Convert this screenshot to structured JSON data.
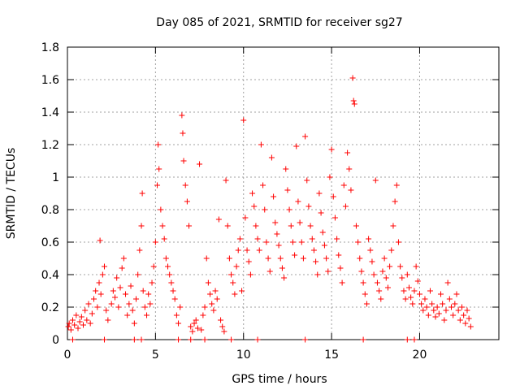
{
  "chart_data": {
    "type": "scatter",
    "title": "Day 085 of 2021, SRMTID for receiver sg27",
    "xlabel": "GPS time / hours",
    "ylabel": "SRMTID / TECUs",
    "xlim": [
      0,
      24.5
    ],
    "ylim": [
      0,
      1.8
    ],
    "xticks": [
      0,
      5,
      10,
      15,
      20
    ],
    "yticks": [
      0,
      0.2,
      0.4,
      0.6,
      0.8,
      1.0,
      1.2,
      1.4,
      1.6,
      1.8
    ],
    "xtick_labels": [
      "0",
      "5",
      "10",
      "15",
      "20"
    ],
    "ytick_labels": [
      "0",
      "0.2",
      "0.4",
      "0.6",
      "0.8",
      "1",
      "1.2",
      "1.4",
      "1.6",
      "1.8"
    ],
    "grid": true,
    "marker": "+",
    "color": "#ff0000",
    "series": [
      {
        "name": "SRMTID",
        "points": [
          [
            0.05,
            0.08
          ],
          [
            0.1,
            0.1
          ],
          [
            0.2,
            0.06
          ],
          [
            0.3,
            0.12
          ],
          [
            0.4,
            0.09
          ],
          [
            0.5,
            0.15
          ],
          [
            0.6,
            0.07
          ],
          [
            0.7,
            0.11
          ],
          [
            0.8,
            0.14
          ],
          [
            0.9,
            0.09
          ],
          [
            1.0,
            0.18
          ],
          [
            1.1,
            0.12
          ],
          [
            1.2,
            0.22
          ],
          [
            1.3,
            0.1
          ],
          [
            1.4,
            0.16
          ],
          [
            1.5,
            0.25
          ],
          [
            1.6,
            0.3
          ],
          [
            1.7,
            0.2
          ],
          [
            1.8,
            0.35
          ],
          [
            1.9,
            0.28
          ],
          [
            1.85,
            0.61
          ],
          [
            2.0,
            0.4
          ],
          [
            2.1,
            0.45
          ],
          [
            2.2,
            0.18
          ],
          [
            2.3,
            0.12
          ],
          [
            2.5,
            0.22
          ],
          [
            2.6,
            0.3
          ],
          [
            2.7,
            0.26
          ],
          [
            2.8,
            0.38
          ],
          [
            2.9,
            0.2
          ],
          [
            3.0,
            0.32
          ],
          [
            3.1,
            0.44
          ],
          [
            3.2,
            0.5
          ],
          [
            3.3,
            0.28
          ],
          [
            3.4,
            0.15
          ],
          [
            3.5,
            0.22
          ],
          [
            3.6,
            0.33
          ],
          [
            3.7,
            0.18
          ],
          [
            3.8,
            0.1
          ],
          [
            3.9,
            0.25
          ],
          [
            4.0,
            0.4
          ],
          [
            4.1,
            0.55
          ],
          [
            4.2,
            0.7
          ],
          [
            4.25,
            0.9
          ],
          [
            4.3,
            0.3
          ],
          [
            4.4,
            0.2
          ],
          [
            4.5,
            0.15
          ],
          [
            4.6,
            0.28
          ],
          [
            4.7,
            0.22
          ],
          [
            4.8,
            0.35
          ],
          [
            4.9,
            0.45
          ],
          [
            5.0,
            0.6
          ],
          [
            5.1,
            0.95
          ],
          [
            5.15,
            1.2
          ],
          [
            5.2,
            1.05
          ],
          [
            5.3,
            0.8
          ],
          [
            5.4,
            0.7
          ],
          [
            5.5,
            0.62
          ],
          [
            5.6,
            0.5
          ],
          [
            5.7,
            0.45
          ],
          [
            5.8,
            0.4
          ],
          [
            5.9,
            0.35
          ],
          [
            6.0,
            0.3
          ],
          [
            6.1,
            0.25
          ],
          [
            6.2,
            0.15
          ],
          [
            6.3,
            0.1
          ],
          [
            6.4,
            0.2
          ],
          [
            6.5,
            1.38
          ],
          [
            6.55,
            1.27
          ],
          [
            6.6,
            1.1
          ],
          [
            6.7,
            0.95
          ],
          [
            6.8,
            0.85
          ],
          [
            6.9,
            0.7
          ],
          [
            7.0,
            0.08
          ],
          [
            7.1,
            0.05
          ],
          [
            7.2,
            0.1
          ],
          [
            7.3,
            0.12
          ],
          [
            7.4,
            0.07
          ],
          [
            7.5,
            1.08
          ],
          [
            7.6,
            0.06
          ],
          [
            7.7,
            0.15
          ],
          [
            7.8,
            0.2
          ],
          [
            7.9,
            0.5
          ],
          [
            8.0,
            0.35
          ],
          [
            8.1,
            0.28
          ],
          [
            8.2,
            0.22
          ],
          [
            8.3,
            0.18
          ],
          [
            8.4,
            0.3
          ],
          [
            8.5,
            0.25
          ],
          [
            8.6,
            0.74
          ],
          [
            8.7,
            0.12
          ],
          [
            8.8,
            0.08
          ],
          [
            8.9,
            0.05
          ],
          [
            9.0,
            0.98
          ],
          [
            9.1,
            0.7
          ],
          [
            9.2,
            0.5
          ],
          [
            9.3,
            0.4
          ],
          [
            9.4,
            0.35
          ],
          [
            9.5,
            0.28
          ],
          [
            9.6,
            0.45
          ],
          [
            9.7,
            0.55
          ],
          [
            9.8,
            0.62
          ],
          [
            9.9,
            0.3
          ],
          [
            10.0,
            1.35
          ],
          [
            10.1,
            0.75
          ],
          [
            10.2,
            0.55
          ],
          [
            10.3,
            0.48
          ],
          [
            10.4,
            0.4
          ],
          [
            10.5,
            0.9
          ],
          [
            10.6,
            0.82
          ],
          [
            10.7,
            0.7
          ],
          [
            10.8,
            0.62
          ],
          [
            10.9,
            0.55
          ],
          [
            11.0,
            1.2
          ],
          [
            11.1,
            0.95
          ],
          [
            11.2,
            0.8
          ],
          [
            11.3,
            0.6
          ],
          [
            11.4,
            0.5
          ],
          [
            11.5,
            0.42
          ],
          [
            11.6,
            1.12
          ],
          [
            11.7,
            0.88
          ],
          [
            11.8,
            0.72
          ],
          [
            11.9,
            0.65
          ],
          [
            12.0,
            0.58
          ],
          [
            12.1,
            0.5
          ],
          [
            12.2,
            0.44
          ],
          [
            12.3,
            0.38
          ],
          [
            12.4,
            1.05
          ],
          [
            12.5,
            0.92
          ],
          [
            12.6,
            0.8
          ],
          [
            12.7,
            0.7
          ],
          [
            12.8,
            0.6
          ],
          [
            12.9,
            0.52
          ],
          [
            13.0,
            1.19
          ],
          [
            13.1,
            0.85
          ],
          [
            13.2,
            0.72
          ],
          [
            13.3,
            0.6
          ],
          [
            13.4,
            0.5
          ],
          [
            13.5,
            1.25
          ],
          [
            13.6,
            0.98
          ],
          [
            13.7,
            0.82
          ],
          [
            13.8,
            0.7
          ],
          [
            13.9,
            0.62
          ],
          [
            14.0,
            0.55
          ],
          [
            14.1,
            0.48
          ],
          [
            14.2,
            0.4
          ],
          [
            14.3,
            0.9
          ],
          [
            14.4,
            0.78
          ],
          [
            14.5,
            0.66
          ],
          [
            14.6,
            0.58
          ],
          [
            14.7,
            0.5
          ],
          [
            14.8,
            0.42
          ],
          [
            14.9,
            1.0
          ],
          [
            15.0,
            1.17
          ],
          [
            15.1,
            0.88
          ],
          [
            15.2,
            0.75
          ],
          [
            15.3,
            0.62
          ],
          [
            15.4,
            0.52
          ],
          [
            15.5,
            0.44
          ],
          [
            15.6,
            0.35
          ],
          [
            15.7,
            0.95
          ],
          [
            15.8,
            0.82
          ],
          [
            15.9,
            1.15
          ],
          [
            16.0,
            1.05
          ],
          [
            16.1,
            0.92
          ],
          [
            16.2,
            1.61
          ],
          [
            16.25,
            1.47
          ],
          [
            16.3,
            1.45
          ],
          [
            16.4,
            0.7
          ],
          [
            16.5,
            0.6
          ],
          [
            16.6,
            0.5
          ],
          [
            16.7,
            0.42
          ],
          [
            16.8,
            0.35
          ],
          [
            16.9,
            0.28
          ],
          [
            17.0,
            0.22
          ],
          [
            17.1,
            0.62
          ],
          [
            17.2,
            0.55
          ],
          [
            17.3,
            0.48
          ],
          [
            17.4,
            0.4
          ],
          [
            17.5,
            0.98
          ],
          [
            17.6,
            0.35
          ],
          [
            17.7,
            0.3
          ],
          [
            17.8,
            0.25
          ],
          [
            17.9,
            0.42
          ],
          [
            18.0,
            0.5
          ],
          [
            18.1,
            0.38
          ],
          [
            18.2,
            0.32
          ],
          [
            18.3,
            0.45
          ],
          [
            18.4,
            0.55
          ],
          [
            18.5,
            0.7
          ],
          [
            18.6,
            0.85
          ],
          [
            18.7,
            0.95
          ],
          [
            18.8,
            0.6
          ],
          [
            18.9,
            0.45
          ],
          [
            19.0,
            0.38
          ],
          [
            19.1,
            0.3
          ],
          [
            19.2,
            0.25
          ],
          [
            19.3,
            0.4
          ],
          [
            19.4,
            0.32
          ],
          [
            19.5,
            0.26
          ],
          [
            19.6,
            0.22
          ],
          [
            19.7,
            0.3
          ],
          [
            19.8,
            0.45
          ],
          [
            19.9,
            0.36
          ],
          [
            20.0,
            0.28
          ],
          [
            20.1,
            0.22
          ],
          [
            20.2,
            0.18
          ],
          [
            20.3,
            0.25
          ],
          [
            20.4,
            0.2
          ],
          [
            20.5,
            0.15
          ],
          [
            20.6,
            0.3
          ],
          [
            20.7,
            0.22
          ],
          [
            20.8,
            0.18
          ],
          [
            20.9,
            0.14
          ],
          [
            21.0,
            0.2
          ],
          [
            21.1,
            0.16
          ],
          [
            21.2,
            0.28
          ],
          [
            21.3,
            0.22
          ],
          [
            21.4,
            0.12
          ],
          [
            21.5,
            0.18
          ],
          [
            21.6,
            0.35
          ],
          [
            21.7,
            0.25
          ],
          [
            21.8,
            0.2
          ],
          [
            21.9,
            0.15
          ],
          [
            22.0,
            0.22
          ],
          [
            22.1,
            0.28
          ],
          [
            22.2,
            0.18
          ],
          [
            22.3,
            0.12
          ],
          [
            22.4,
            0.2
          ],
          [
            22.5,
            0.15
          ],
          [
            22.6,
            0.1
          ],
          [
            22.7,
            0.18
          ],
          [
            22.8,
            0.13
          ],
          [
            22.9,
            0.08
          ],
          [
            0.3,
            0.0
          ],
          [
            2.1,
            0.0
          ],
          [
            3.8,
            0.0
          ],
          [
            4.2,
            0.0
          ],
          [
            6.3,
            0.0
          ],
          [
            7.0,
            0.0
          ],
          [
            7.8,
            0.0
          ],
          [
            9.3,
            0.0
          ],
          [
            10.8,
            0.0
          ],
          [
            13.5,
            0.0
          ],
          [
            16.8,
            0.0
          ],
          [
            19.3,
            0.0
          ],
          [
            19.7,
            0.0
          ]
        ]
      }
    ]
  }
}
